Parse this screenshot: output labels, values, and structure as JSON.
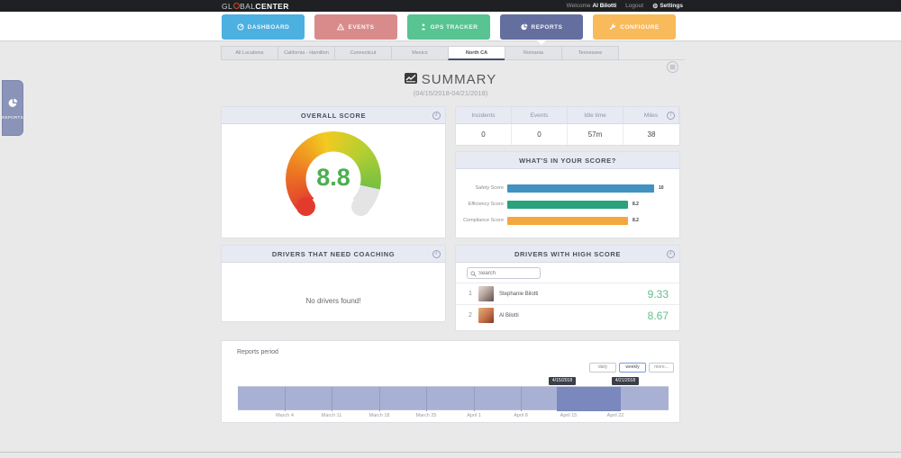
{
  "topbar": {
    "logo_prefix": "GL",
    "logo_mid": "BAL",
    "logo_bold": "CENTER",
    "welcome_label": "Welcome",
    "user_name": "Al Bilotti",
    "logout_label": "Logout",
    "settings_label": "Settings"
  },
  "nav": {
    "items": [
      {
        "label": "DASHBOARD",
        "icon": "gauge-icon",
        "color": "#4cb0e0",
        "active": false
      },
      {
        "label": "EVENTS",
        "icon": "warning-icon",
        "color": "#d98b8b",
        "active": false
      },
      {
        "label": "GPS TRACKER",
        "icon": "person-icon",
        "color": "#57c492",
        "active": false
      },
      {
        "label": "REPORTS",
        "icon": "pie-chart-icon",
        "color": "#646fa0",
        "active": true
      },
      {
        "label": "CONFIGURE",
        "icon": "wrench-icon",
        "color": "#f9ba5c",
        "active": false
      }
    ]
  },
  "tabs": {
    "items": [
      "All Locations",
      "California - Hamilton",
      "Connecticut",
      "Mexico",
      "North CA",
      "Romania",
      "Tennessee"
    ],
    "active": "North CA"
  },
  "summary": {
    "title": "SUMMARY",
    "date_range": "(04/15/2018-04/21/2018)"
  },
  "side_handle": {
    "label": "REPORTS"
  },
  "overall_score": {
    "title": "OVERALL SCORE",
    "value": "8.8",
    "max": 10,
    "gauge_colors": [
      "#e23b2e",
      "#ee7d22",
      "#f2ca20",
      "#b5cf31",
      "#76c043"
    ],
    "track_color": "#e4e4e4",
    "value_color": "#4cae50"
  },
  "stats": {
    "columns": [
      "Incidents",
      "Events",
      "Idle time",
      "Miles"
    ],
    "values": [
      "0",
      "0",
      "57m",
      "38"
    ]
  },
  "score_breakdown": {
    "title": "WHAT'S IN YOUR SCORE?",
    "chart_data": {
      "type": "bar",
      "orientation": "horizontal",
      "categories": [
        "Safety Score",
        "Efficiency Score",
        "Compliance Score"
      ],
      "values": [
        10,
        8.2,
        8.2
      ],
      "display_values": [
        "10",
        "8.2",
        "8.2"
      ],
      "colors": [
        "#4191c1",
        "#2aa37c",
        "#f3a83d"
      ],
      "xlim": [
        0,
        10
      ]
    }
  },
  "coaching": {
    "title": "DRIVERS THAT NEED COACHING",
    "empty_message": "No drivers found!"
  },
  "high_score": {
    "title": "DRIVERS WITH HIGH SCORE",
    "search_placeholder": "Search",
    "drivers": [
      {
        "rank": "1",
        "name": "Stephanie Bilotti",
        "score": "9.33"
      },
      {
        "rank": "2",
        "name": "Al Bilotti",
        "score": "8.67"
      }
    ]
  },
  "reports_period": {
    "title": "Reports period",
    "buttons": [
      "daily",
      "weekly",
      "more..."
    ],
    "active_button": "weekly",
    "range_start_label": "4/15/2018",
    "range_end_label": "4/21/2018",
    "chart_data": {
      "type": "area",
      "x_labels": [
        "March 4",
        "March 11",
        "March 18",
        "March 25",
        "April 1",
        "April 8",
        "April 15",
        "April 22"
      ],
      "values": [
        1,
        1,
        1,
        1,
        1,
        1,
        1,
        1
      ],
      "note": "uniform-height navigator band with selected range 4/15/2018 - 4/21/2018",
      "band_color": "#a8b1d3",
      "selected_color": "#7b88bd"
    }
  }
}
